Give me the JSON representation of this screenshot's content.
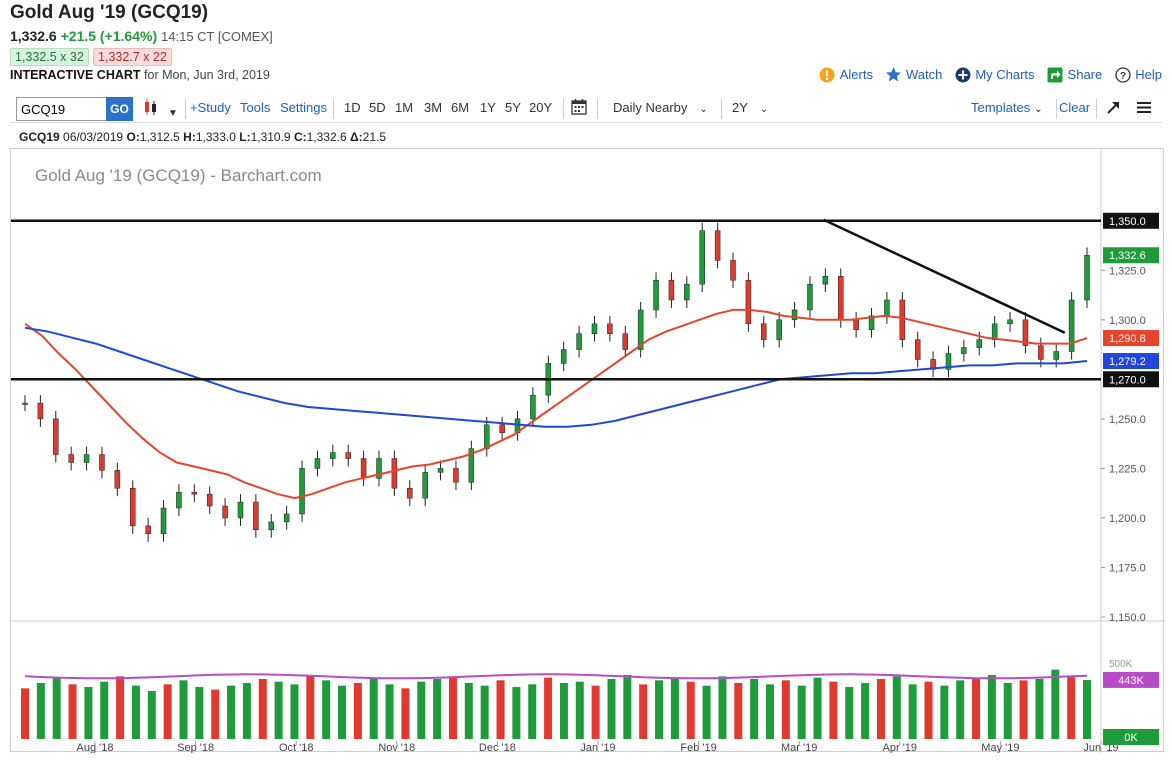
{
  "header": {
    "title": "Gold Aug '19 (GCQ19)",
    "last": "1,332.6",
    "change": "+21.5 (+1.64%)",
    "time": "14:15 CT [COMEX]",
    "bid": "1,332.5 x 32",
    "ask": "1,332.7 x 22",
    "interactive_label": "INTERACTIVE CHART",
    "date_label": "for Mon, Jun 3rd, 2019"
  },
  "top_links": [
    "Alerts",
    "Watch",
    "My Charts",
    "Share",
    "Help"
  ],
  "toolbar": {
    "symbol_value": "GCQ19",
    "go_label": "GO",
    "study_label": "+Study",
    "tools_label": "Tools",
    "settings_label": "Settings",
    "periods": [
      "1D",
      "5D",
      "1M",
      "3M",
      "6M",
      "1Y",
      "5Y",
      "20Y"
    ],
    "aggregation": "Daily Nearby",
    "range": "2Y",
    "templates_label": "Templates",
    "clear_label": "Clear"
  },
  "ohlc": {
    "symbol": "GCQ19",
    "date": "06/03/2019",
    "open_label": "O:",
    "open": "1,312.5",
    "high_label": "H:",
    "high": "1,333.0",
    "low_label": "L:",
    "low": "1,310.9",
    "close_label": "C:",
    "close": "1,332.6",
    "delta_label": "Δ:",
    "delta": "21.5"
  },
  "chart_data": {
    "type": "line",
    "watermark": "Gold Aug '19 (GCQ19) - Barchart.com",
    "y_ticks": [
      "1,325.0",
      "1,300.0",
      "1,250.0",
      "1,225.0",
      "1,200.0",
      "1,175.0",
      "1,150.0"
    ],
    "ylim": [
      1150,
      1362
    ],
    "x_ticks": [
      "Aug '18",
      "Sep '18",
      "Oct '18",
      "Nov '18",
      "Dec '18",
      "Jan '19",
      "Feb '19",
      "Mar '19",
      "Apr '19",
      "May '19",
      "Jun '19"
    ],
    "price_labels": {
      "resistance": "1,350.0",
      "last": "1,332.6",
      "ma50": "1,290.8",
      "ma200": "1,279.2",
      "support": "1,270.0"
    },
    "levels": {
      "resistance": 1350.0,
      "support": 1270.0,
      "last": 1332.6,
      "ma50": 1290.8,
      "ma200": 1279.2
    },
    "trendline": [
      [
        0.745,
        1350.5
      ],
      [
        0.97,
        1293.5
      ]
    ],
    "closes_weekly": [
      1258,
      1250,
      1232,
      1228,
      1232,
      1224,
      1215,
      1196,
      1192,
      1205,
      1213,
      1212,
      1206,
      1200,
      1208,
      1194,
      1198,
      1202,
      1225,
      1230,
      1233,
      1230,
      1220,
      1230,
      1215,
      1210,
      1223,
      1225,
      1218,
      1235,
      1247,
      1243,
      1250,
      1262,
      1278,
      1285,
      1293,
      1298,
      1293,
      1285,
      1305,
      1320,
      1310,
      1318,
      1345,
      1330,
      1320,
      1298,
      1290,
      1300,
      1305,
      1318,
      1322,
      1300,
      1295,
      1302,
      1310,
      1290,
      1280,
      1275,
      1283,
      1286,
      1290,
      1298,
      1300,
      1287,
      1280,
      1284,
      1310,
      1332.6
    ],
    "ma50_weekly": [
      1298,
      1292,
      1283,
      1275,
      1266,
      1257,
      1248,
      1240,
      1233,
      1228,
      1226,
      1224,
      1222,
      1218,
      1215,
      1212,
      1210,
      1212,
      1215,
      1218,
      1220,
      1222,
      1224,
      1226,
      1227,
      1229,
      1231,
      1234,
      1238,
      1242,
      1248,
      1254,
      1260,
      1266,
      1272,
      1278,
      1284,
      1290,
      1294,
      1297,
      1300,
      1303,
      1305,
      1305,
      1304,
      1302,
      1301,
      1300,
      1300,
      1300,
      1301,
      1302,
      1301,
      1299,
      1297,
      1295,
      1293,
      1291,
      1290,
      1289,
      1288,
      1288,
      1288,
      1290.8
    ],
    "ma200_weekly": [
      1296,
      1294,
      1291,
      1288,
      1284,
      1280,
      1276,
      1272,
      1268,
      1264,
      1261,
      1258,
      1256,
      1255,
      1254,
      1253,
      1252,
      1251,
      1250,
      1249,
      1248,
      1247,
      1246,
      1246,
      1247,
      1249,
      1252,
      1255,
      1258,
      1261,
      1264,
      1267,
      1270,
      1271,
      1272,
      1273,
      1273,
      1274,
      1275,
      1276,
      1277,
      1277,
      1278,
      1278,
      1278,
      1279.2
    ],
    "volume_ticks": [
      "443K",
      "0K"
    ],
    "volume_label_y_top": "500K",
    "volume_weekly": [
      380,
      420,
      460,
      410,
      390,
      430,
      470,
      400,
      360,
      410,
      440,
      390,
      370,
      400,
      420,
      450,
      430,
      410,
      470,
      440,
      400,
      420,
      460,
      410,
      380,
      430,
      450,
      470,
      420,
      400,
      440,
      390,
      410,
      460,
      420,
      430,
      400,
      450,
      480,
      410,
      440,
      460,
      430,
      400,
      470,
      420,
      450,
      410,
      440,
      400,
      460,
      430,
      390,
      420,
      450,
      470,
      410,
      430,
      400,
      440,
      460,
      480,
      420,
      440,
      450,
      520,
      470,
      443
    ]
  }
}
